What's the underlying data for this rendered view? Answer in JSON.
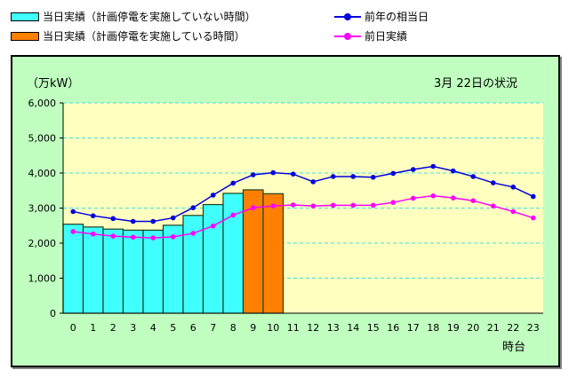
{
  "legend": {
    "bar_normal": "当日実績（計画停電を実施していない時間）",
    "bar_outage": "当日実績（計画停電を実施している時間）",
    "prev_year": "前年の相当日",
    "prev_day": "前日実績"
  },
  "colors": {
    "bar_normal": "#40ffff",
    "bar_outage": "#ff8000",
    "prev_year": "#0000e0",
    "prev_day": "#ff00ff",
    "plot_bg": "#ffffc0",
    "panel_bg": "#c0ffc0",
    "grid": "#40e0e0"
  },
  "chart_data": {
    "type": "bar",
    "title": "3月 22日の状況",
    "ylabel": "（万kW）",
    "xlabel": "時台",
    "ylim": [
      0,
      6000
    ],
    "yticks": [
      "0",
      "1,000",
      "2,000",
      "3,000",
      "4,000",
      "5,000",
      "6,000"
    ],
    "categories": [
      "0",
      "1",
      "2",
      "3",
      "4",
      "5",
      "6",
      "7",
      "8",
      "9",
      "10",
      "11",
      "12",
      "13",
      "14",
      "15",
      "16",
      "17",
      "18",
      "19",
      "20",
      "21",
      "22",
      "23"
    ],
    "grid": true,
    "legend_position": "top",
    "bars": {
      "values": [
        2540,
        2460,
        2400,
        2370,
        2370,
        2510,
        2790,
        3100,
        3420,
        3520,
        3410
      ],
      "outage_hours": [
        "9",
        "10"
      ]
    },
    "series": [
      {
        "name": "前年の相当日",
        "type": "line",
        "values": [
          2900,
          2780,
          2700,
          2620,
          2620,
          2720,
          3010,
          3370,
          3710,
          3950,
          4010,
          3970,
          3750,
          3900,
          3900,
          3880,
          3990,
          4100,
          4190,
          4060,
          3900,
          3720,
          3600,
          3330
        ]
      },
      {
        "name": "前日実績",
        "type": "line",
        "values": [
          2330,
          2260,
          2200,
          2170,
          2150,
          2180,
          2280,
          2490,
          2800,
          3010,
          3060,
          3090,
          3060,
          3080,
          3080,
          3080,
          3160,
          3280,
          3350,
          3290,
          3210,
          3060,
          2900,
          2720
        ]
      }
    ]
  }
}
